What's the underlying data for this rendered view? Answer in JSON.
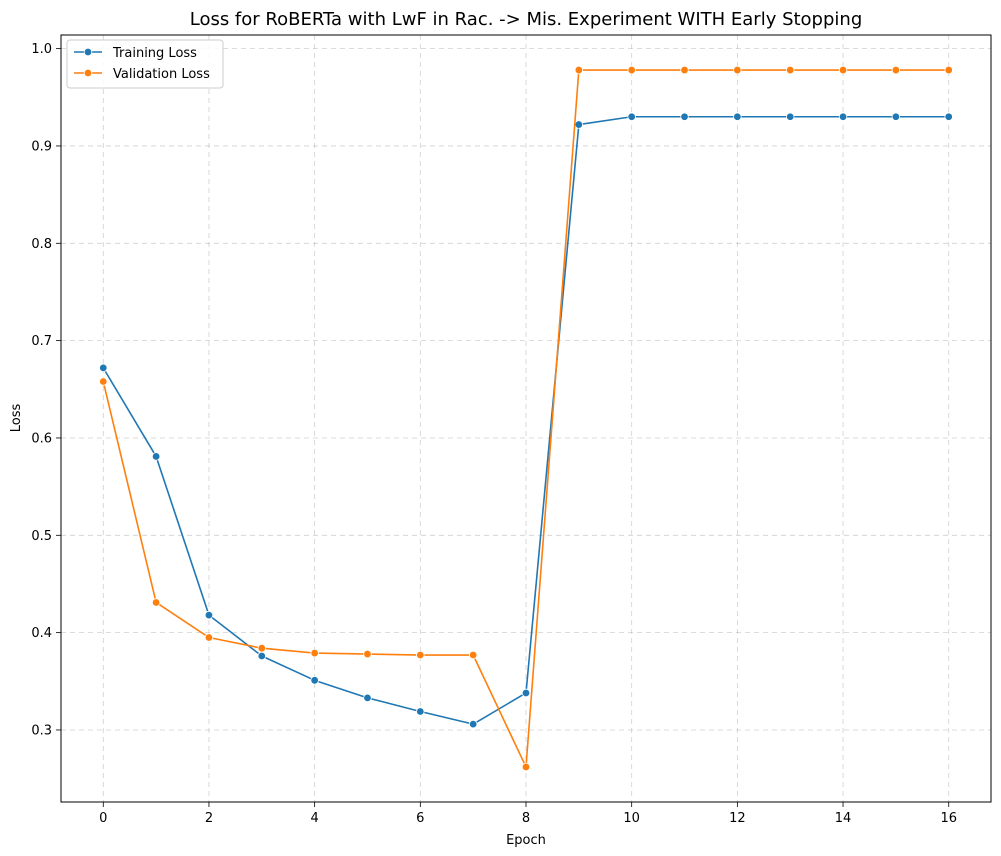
{
  "chart_data": {
    "type": "line",
    "title": "Loss for RoBERTa with LwF in Rac. -> Mis. Experiment WITH Early Stopping",
    "xlabel": "Epoch",
    "ylabel": "Loss",
    "xlim": [
      -0.8,
      16.8
    ],
    "ylim": [
      0.226,
      1.014
    ],
    "xticks": [
      0,
      2,
      4,
      6,
      8,
      10,
      12,
      14,
      16
    ],
    "yticks": [
      0.3,
      0.4,
      0.5,
      0.6,
      0.7,
      0.8,
      0.9,
      1.0
    ],
    "xtick_labels": [
      "0",
      "2",
      "4",
      "6",
      "8",
      "10",
      "12",
      "14",
      "16"
    ],
    "ytick_labels": [
      "0.3",
      "0.4",
      "0.5",
      "0.6",
      "0.7",
      "0.8",
      "0.9",
      "1.0"
    ],
    "grid": true,
    "legend_position": "top-left",
    "x": [
      0,
      1,
      2,
      3,
      4,
      5,
      6,
      7,
      8,
      9,
      10,
      11,
      12,
      13,
      14,
      15,
      16
    ],
    "series": [
      {
        "name": "Training Loss",
        "color": "#1f77b4",
        "values": [
          0.672,
          0.581,
          0.418,
          0.376,
          0.351,
          0.333,
          0.319,
          0.306,
          0.338,
          0.922,
          0.93,
          0.93,
          0.93,
          0.93,
          0.93,
          0.93,
          0.93
        ]
      },
      {
        "name": "Validation Loss",
        "color": "#ff7f0e",
        "values": [
          0.658,
          0.431,
          0.395,
          0.384,
          0.379,
          0.378,
          0.377,
          0.377,
          0.262,
          0.978,
          0.978,
          0.978,
          0.978,
          0.978,
          0.978,
          0.978,
          0.978
        ]
      }
    ]
  }
}
